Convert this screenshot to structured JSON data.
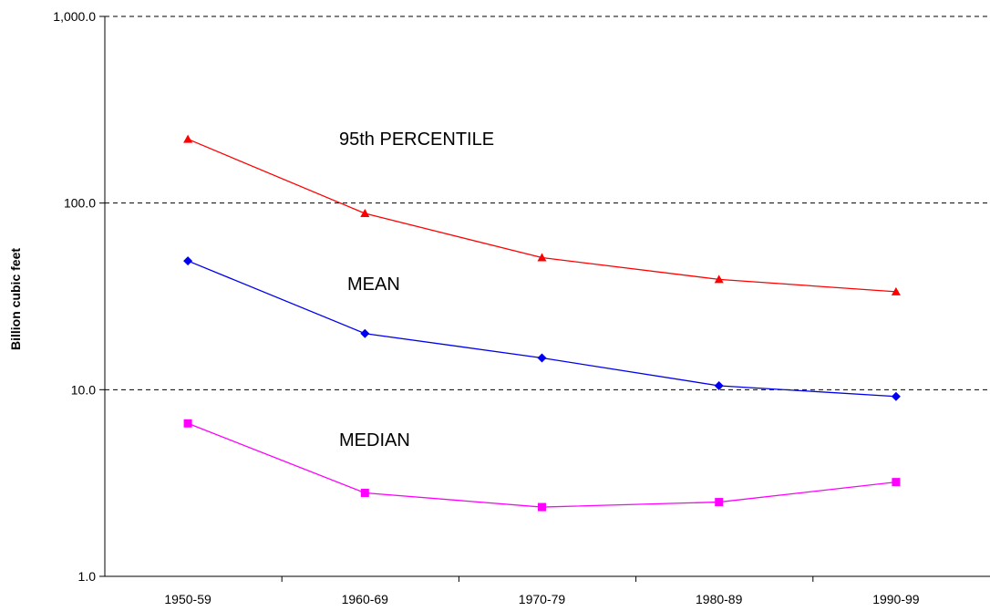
{
  "chart_data": {
    "type": "line",
    "title": "",
    "xlabel": "",
    "ylabel": "Billion cubic feet",
    "yscale": "log",
    "ylim": [
      1,
      1000
    ],
    "yticks": [
      "1.0",
      "10.0",
      "100.0",
      "1,000.0"
    ],
    "ytick_values": [
      1,
      10,
      100,
      1000
    ],
    "grid": "horizontal dashed",
    "legend": "none (series labeled inline)",
    "categories": [
      "1950-59",
      "1960-69",
      "1970-79",
      "1980-89",
      "1990-99"
    ],
    "series": [
      {
        "name": "95th PERCENTILE",
        "color": "#ff0000",
        "marker": "triangle",
        "values": [
          220,
          88,
          51,
          39,
          33.5
        ]
      },
      {
        "name": "MEAN",
        "color": "#0000ee",
        "marker": "diamond",
        "values": [
          49,
          20,
          14.8,
          10.5,
          9.2
        ]
      },
      {
        "name": "MEDIAN",
        "color": "#ff00ff",
        "marker": "square",
        "values": [
          6.6,
          2.8,
          2.35,
          2.5,
          3.2
        ]
      }
    ]
  }
}
